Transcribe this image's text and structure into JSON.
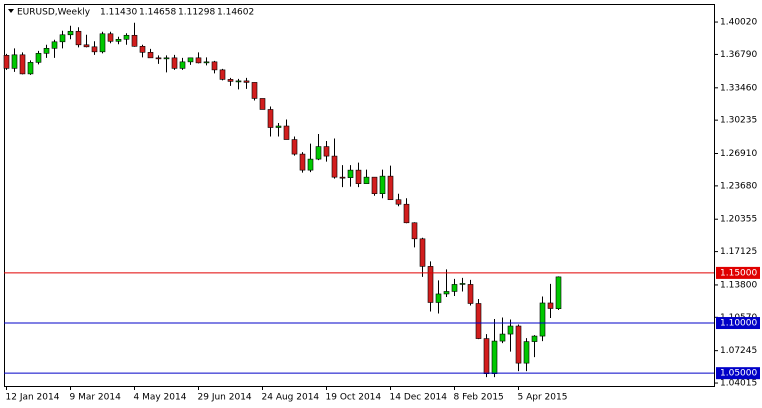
{
  "chart_data": {
    "type": "candlestick",
    "title": "EURUSD,Weekly",
    "header_ohlc": [
      "1.11430",
      "1.14658",
      "1.11298",
      "1.14602"
    ],
    "up_color": "#00c800",
    "down_color": "#d21e1e",
    "wick_color": "#000000",
    "categories": [
      "12 Jan 2014",
      null,
      null,
      null,
      null,
      null,
      null,
      null,
      "9 Mar 2014",
      null,
      null,
      null,
      null,
      null,
      null,
      null,
      "4 May 2014",
      null,
      null,
      null,
      null,
      null,
      null,
      null,
      "29 Jun 2014",
      null,
      null,
      null,
      null,
      null,
      null,
      null,
      "24 Aug 2014",
      null,
      null,
      null,
      null,
      null,
      null,
      null,
      "19 Oct 2014",
      null,
      null,
      null,
      null,
      null,
      null,
      null,
      "14 Dec 2014",
      null,
      null,
      null,
      null,
      null,
      null,
      null,
      "8 Feb 2015",
      null,
      null,
      null,
      null,
      null,
      null,
      null,
      "5 Apr 2015",
      null,
      null,
      null,
      null,
      null
    ],
    "open": [
      1.367,
      1.354,
      1.3675,
      1.3485,
      1.36,
      1.369,
      1.374,
      1.3805,
      1.3875,
      1.391,
      1.3775,
      1.3755,
      1.3705,
      1.3885,
      1.381,
      1.383,
      1.387,
      1.376,
      1.37,
      1.3645,
      1.3635,
      1.3645,
      1.354,
      1.3605,
      1.3645,
      1.3595,
      1.3605,
      1.3525,
      1.343,
      1.341,
      1.3415,
      1.34,
      1.324,
      1.313,
      1.295,
      1.2965,
      1.283,
      1.2685,
      1.2525,
      1.2635,
      1.276,
      1.2665,
      1.2455,
      1.245,
      1.2525,
      1.239,
      1.2455,
      1.229,
      1.2465,
      1.223,
      1.2185,
      1.2,
      1.184,
      1.1565,
      1.1205,
      1.129,
      1.1315,
      1.1385,
      1.1385,
      1.1195,
      1.0845,
      1.0495,
      1.082,
      1.089,
      1.097,
      1.06,
      1.0815,
      1.087,
      1.12,
      1.1143
    ],
    "high": [
      1.3685,
      1.374,
      1.37,
      1.362,
      1.3715,
      1.3775,
      1.3825,
      1.3915,
      1.3965,
      1.395,
      1.3875,
      1.381,
      1.3905,
      1.3905,
      1.3855,
      1.389,
      1.3995,
      1.3775,
      1.3735,
      1.367,
      1.367,
      1.3675,
      1.3645,
      1.3645,
      1.37,
      1.365,
      1.3615,
      1.3535,
      1.3445,
      1.3435,
      1.3445,
      1.34,
      1.324,
      1.316,
      1.2995,
      1.303,
      1.286,
      1.2705,
      1.279,
      1.2885,
      1.2815,
      1.284,
      1.2575,
      1.2575,
      1.26,
      1.253,
      1.2455,
      1.253,
      1.257,
      1.229,
      1.2245,
      1.2005,
      1.185,
      1.1615,
      1.1425,
      1.1535,
      1.144,
      1.145,
      1.143,
      1.124,
      1.089,
      1.104,
      1.1055,
      1.1035,
      1.0985,
      1.085,
      1.088,
      1.1265,
      1.139,
      1.14658
    ],
    "low": [
      1.3525,
      1.3505,
      1.348,
      1.3475,
      1.358,
      1.3645,
      1.3645,
      1.374,
      1.383,
      1.375,
      1.375,
      1.3675,
      1.369,
      1.379,
      1.378,
      1.3775,
      1.3755,
      1.365,
      1.3645,
      1.3585,
      1.35,
      1.3525,
      1.3525,
      1.3575,
      1.359,
      1.357,
      1.349,
      1.342,
      1.3365,
      1.333,
      1.3335,
      1.322,
      1.313,
      1.286,
      1.286,
      1.2835,
      1.267,
      1.25,
      1.2505,
      1.2625,
      1.261,
      1.244,
      1.2355,
      1.236,
      1.2355,
      1.239,
      1.227,
      1.2245,
      1.2235,
      1.2165,
      1.1995,
      1.1755,
      1.146,
      1.1115,
      1.1095,
      1.126,
      1.127,
      1.1315,
      1.1175,
      1.084,
      1.046,
      1.046,
      1.08,
      1.0715,
      1.052,
      1.052,
      1.066,
      1.082,
      1.105,
      1.11298
    ],
    "close": [
      1.354,
      1.3675,
      1.3485,
      1.36,
      1.369,
      1.374,
      1.3805,
      1.3875,
      1.391,
      1.3775,
      1.3755,
      1.3705,
      1.3885,
      1.381,
      1.383,
      1.387,
      1.376,
      1.37,
      1.3645,
      1.3635,
      1.3645,
      1.354,
      1.3605,
      1.3645,
      1.3595,
      1.3605,
      1.3525,
      1.343,
      1.341,
      1.3415,
      1.34,
      1.324,
      1.313,
      1.295,
      1.2965,
      1.283,
      1.2685,
      1.2525,
      1.2635,
      1.276,
      1.2665,
      1.2455,
      1.245,
      1.2525,
      1.239,
      1.2455,
      1.229,
      1.2465,
      1.223,
      1.2185,
      1.2,
      1.184,
      1.1565,
      1.1205,
      1.129,
      1.1315,
      1.1385,
      1.1395,
      1.1195,
      1.0845,
      1.0495,
      1.082,
      1.089,
      1.097,
      1.06,
      1.0815,
      1.087,
      1.12,
      1.1145,
      1.14602
    ],
    "ylim": [
      1.0372,
      1.4182
    ],
    "yticks": [
      {
        "value": 1.4002,
        "label": "1.40020"
      },
      {
        "value": 1.3679,
        "label": "1.36790"
      },
      {
        "value": 1.3346,
        "label": "1.33460"
      },
      {
        "value": 1.30235,
        "label": "1.30235"
      },
      {
        "value": 1.2691,
        "label": "1.26910"
      },
      {
        "value": 1.2368,
        "label": "1.23680"
      },
      {
        "value": 1.20355,
        "label": "1.20355"
      },
      {
        "value": 1.17125,
        "label": "1.17125"
      },
      {
        "value": 1.138,
        "label": "1.13800"
      },
      {
        "value": 1.1057,
        "label": "1.10570"
      },
      {
        "value": 1.07245,
        "label": "1.07245"
      },
      {
        "value": 1.04015,
        "label": "1.04015"
      }
    ],
    "hlines": [
      {
        "value": 1.15,
        "label": "1.15000",
        "color": "#e00000"
      },
      {
        "value": 1.1,
        "label": "1.10000",
        "color": "#0000c8"
      },
      {
        "value": 1.05,
        "label": "1.05000",
        "color": "#0000c8"
      }
    ]
  }
}
